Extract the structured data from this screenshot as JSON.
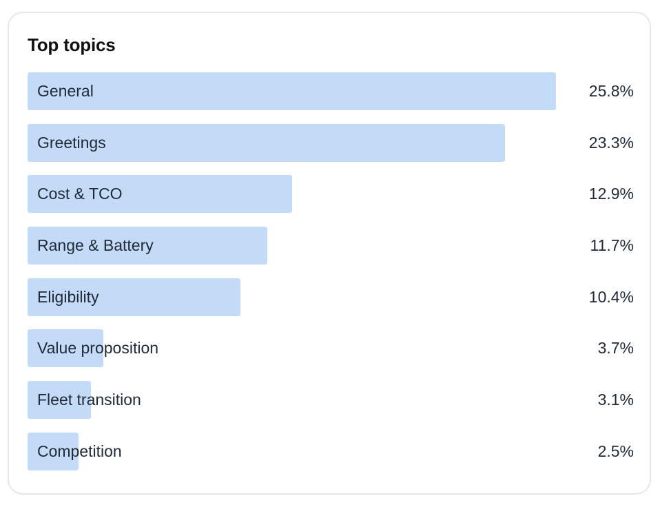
{
  "chart_data": {
    "type": "bar",
    "orientation": "horizontal",
    "title": "Top topics",
    "categories": [
      "General",
      "Greetings",
      "Cost & TCO",
      "Range & Battery",
      "Eligibility",
      "Value proposition",
      "Fleet transition",
      "Competition"
    ],
    "values": [
      25.8,
      23.3,
      12.9,
      11.7,
      10.4,
      3.7,
      3.1,
      2.5
    ],
    "value_labels": [
      "25.8%",
      "23.3%",
      "12.9%",
      "11.7%",
      "10.4%",
      "3.7%",
      "3.1%",
      "2.5%"
    ],
    "unit": "%",
    "bar_color": "#c4dbf8",
    "grid": false,
    "legend": "none"
  }
}
